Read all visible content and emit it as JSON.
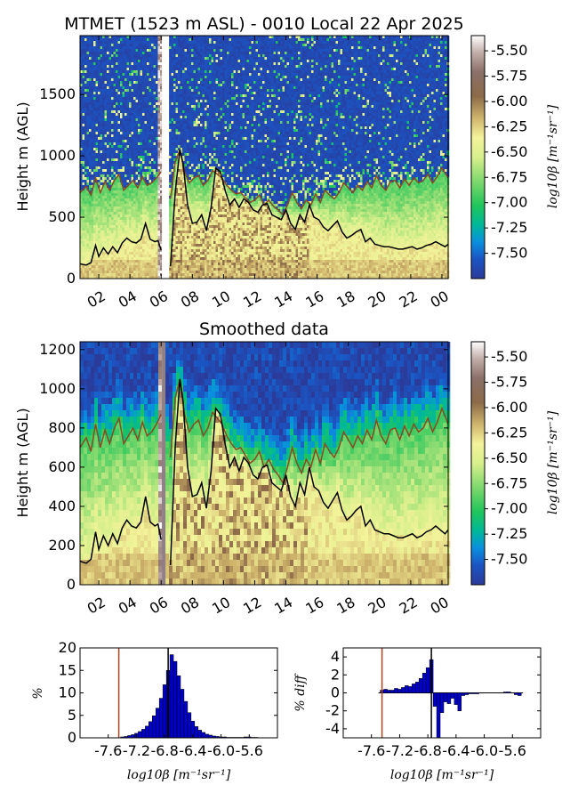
{
  "chart_data": [
    {
      "type": "heatmap",
      "title": "MTMET (1523 m ASL) - 0010 Local 22 Apr 2025",
      "ylabel": "Height m (AGL)",
      "xlabel": "",
      "x_ticks": [
        "02",
        "04",
        "06",
        "08",
        "10",
        "12",
        "14",
        "16",
        "18",
        "20",
        "22",
        "00"
      ],
      "x_range_hours": [
        0.8,
        24.4
      ],
      "ylim": [
        0,
        1980
      ],
      "y_ticks": [
        "0",
        "500",
        "1000",
        "1500"
      ],
      "colorbar": {
        "label": "log10β [m⁻¹sr⁻¹]",
        "range": [
          -7.75,
          -5.35
        ],
        "ticks": [
          "-5.50",
          "-5.75",
          "-6.00",
          "-6.25",
          "-6.50",
          "-6.75",
          "-7.00",
          "-7.25",
          "-7.50"
        ]
      },
      "series": [
        {
          "x": [
            0.8,
            1.2,
            1.5,
            1.8,
            2.0,
            2.3,
            2.6,
            2.9,
            3.2,
            3.5,
            3.8,
            4.1,
            4.4,
            4.7,
            5.0,
            5.3,
            5.6,
            5.8,
            6.0,
            6.6,
            6.9,
            7.2,
            7.4,
            7.7,
            8.0,
            8.3,
            8.6,
            8.9,
            9.2,
            9.5,
            9.8,
            10.1,
            10.4,
            10.7,
            11.0,
            11.3,
            11.6,
            11.9,
            12.2,
            12.5,
            12.8,
            13.1,
            13.4,
            13.7,
            14.0,
            14.3,
            14.6,
            14.9,
            15.2,
            15.5,
            15.8,
            16.1,
            16.4,
            16.7,
            17.0,
            17.3,
            17.6,
            17.9,
            18.2,
            18.5,
            18.8,
            19.1,
            19.4,
            19.7,
            20.0,
            20.3,
            20.6,
            20.9,
            21.2,
            21.5,
            21.8,
            22.1,
            22.4,
            22.7,
            23.0,
            23.3,
            23.6,
            23.9,
            24.2,
            24.4
          ],
          "y": [
            120,
            110,
            130,
            270,
            180,
            250,
            200,
            260,
            210,
            290,
            330,
            300,
            290,
            320,
            450,
            320,
            300,
            310,
            230,
            100,
            700,
            1050,
            940,
            600,
            450,
            460,
            520,
            390,
            580,
            900,
            870,
            720,
            600,
            650,
            580,
            650,
            620,
            560,
            540,
            600,
            610,
            520,
            500,
            480,
            560,
            450,
            400,
            520,
            460,
            600,
            500,
            480,
            420,
            390,
            430,
            470,
            380,
            330,
            350,
            380,
            400,
            300,
            330,
            280,
            270,
            260,
            260,
            250,
            240,
            240,
            250,
            260,
            240,
            250,
            270,
            280,
            300,
            280,
            260,
            280
          ]
        },
        {
          "x": [
            0.8,
            1.2,
            1.5,
            1.8,
            2.1,
            2.4,
            2.7,
            3.0,
            3.3,
            3.6,
            3.9,
            4.2,
            4.5,
            4.8,
            5.1,
            5.4,
            5.7,
            6.0,
            6.6,
            6.9,
            7.2,
            7.5,
            7.8,
            8.1,
            8.4,
            8.7,
            9.0,
            9.3,
            9.6,
            9.9,
            10.2,
            10.5,
            10.8,
            11.1,
            11.4,
            11.7,
            12.0,
            12.3,
            12.6,
            12.9,
            13.2,
            13.5,
            13.8,
            14.1,
            14.4,
            14.7,
            15.0,
            15.3,
            15.6,
            15.9,
            16.2,
            16.5,
            16.8,
            17.1,
            17.4,
            17.7,
            18.0,
            18.3,
            18.6,
            18.9,
            19.2,
            19.5,
            19.8,
            20.1,
            20.4,
            20.7,
            21.0,
            21.3,
            21.6,
            21.9,
            22.2,
            22.5,
            22.8,
            23.1,
            23.4,
            23.7,
            24.0,
            24.4
          ],
          "y": [
            700,
            750,
            680,
            820,
            700,
            790,
            720,
            800,
            850,
            720,
            760,
            800,
            740,
            830,
            760,
            780,
            820,
            870,
            650,
            950,
            1050,
            870,
            780,
            820,
            840,
            760,
            800,
            880,
            850,
            820,
            760,
            720,
            690,
            700,
            660,
            620,
            640,
            680,
            600,
            640,
            590,
            560,
            520,
            600,
            700,
            620,
            570,
            640,
            600,
            690,
            620,
            720,
            680,
            650,
            700,
            780,
            740,
            700,
            760,
            720,
            790,
            740,
            840,
            760,
            720,
            790,
            800,
            740,
            810,
            760,
            820,
            780,
            800,
            850,
            780,
            830,
            900,
            820
          ]
        }
      ]
    },
    {
      "type": "heatmap",
      "title": "Smoothed data",
      "ylabel": "Height m (AGL)",
      "xlabel": "",
      "x_ticks": [
        "02",
        "04",
        "06",
        "08",
        "10",
        "12",
        "14",
        "16",
        "18",
        "20",
        "22",
        "00"
      ],
      "x_range_hours": [
        0.8,
        24.4
      ],
      "ylim": [
        0,
        1240
      ],
      "y_ticks": [
        "0",
        "200",
        "400",
        "600",
        "800",
        "1000",
        "1200"
      ],
      "colorbar": {
        "label": "log10β [m⁻¹sr⁻¹]",
        "range": [
          -7.75,
          -5.35
        ],
        "ticks": [
          "-5.50",
          "-5.75",
          "-6.00",
          "-6.25",
          "-6.50",
          "-6.75",
          "-7.00",
          "-7.25",
          "-7.50"
        ]
      },
      "series": [
        {
          "x": [
            0.8,
            1.2,
            1.5,
            1.8,
            2.0,
            2.3,
            2.6,
            2.9,
            3.2,
            3.5,
            3.8,
            4.1,
            4.4,
            4.7,
            5.0,
            5.3,
            5.6,
            5.8,
            6.0,
            6.6,
            6.9,
            7.2,
            7.4,
            7.7,
            8.0,
            8.3,
            8.6,
            8.9,
            9.2,
            9.5,
            9.8,
            10.1,
            10.4,
            10.7,
            11.0,
            11.3,
            11.6,
            11.9,
            12.2,
            12.5,
            12.8,
            13.1,
            13.4,
            13.7,
            14.0,
            14.3,
            14.6,
            14.9,
            15.2,
            15.5,
            15.8,
            16.1,
            16.4,
            16.7,
            17.0,
            17.3,
            17.6,
            17.9,
            18.2,
            18.5,
            18.8,
            19.1,
            19.4,
            19.7,
            20.0,
            20.3,
            20.6,
            20.9,
            21.2,
            21.5,
            21.8,
            22.1,
            22.4,
            22.7,
            23.0,
            23.3,
            23.6,
            23.9,
            24.2,
            24.4
          ],
          "y": [
            120,
            110,
            130,
            270,
            180,
            250,
            200,
            260,
            210,
            290,
            330,
            300,
            290,
            320,
            450,
            320,
            300,
            310,
            230,
            100,
            700,
            1050,
            940,
            600,
            450,
            460,
            520,
            390,
            580,
            900,
            870,
            720,
            600,
            650,
            580,
            650,
            620,
            560,
            540,
            600,
            610,
            520,
            500,
            480,
            560,
            450,
            400,
            520,
            460,
            600,
            500,
            480,
            420,
            390,
            430,
            470,
            380,
            330,
            350,
            380,
            400,
            300,
            330,
            280,
            270,
            260,
            260,
            250,
            240,
            240,
            250,
            260,
            240,
            250,
            270,
            280,
            300,
            280,
            260,
            280
          ]
        },
        {
          "x": [
            0.8,
            1.2,
            1.5,
            1.8,
            2.1,
            2.4,
            2.7,
            3.0,
            3.3,
            3.6,
            3.9,
            4.2,
            4.5,
            4.8,
            5.1,
            5.4,
            5.7,
            6.0,
            6.6,
            6.9,
            7.2,
            7.5,
            7.8,
            8.1,
            8.4,
            8.7,
            9.0,
            9.3,
            9.6,
            9.9,
            10.2,
            10.5,
            10.8,
            11.1,
            11.4,
            11.7,
            12.0,
            12.3,
            12.6,
            12.9,
            13.2,
            13.5,
            13.8,
            14.1,
            14.4,
            14.7,
            15.0,
            15.3,
            15.6,
            15.9,
            16.2,
            16.5,
            16.8,
            17.1,
            17.4,
            17.7,
            18.0,
            18.3,
            18.6,
            18.9,
            19.2,
            19.5,
            19.8,
            20.1,
            20.4,
            20.7,
            21.0,
            21.3,
            21.6,
            21.9,
            22.2,
            22.5,
            22.8,
            23.1,
            23.4,
            23.7,
            24.0,
            24.4
          ],
          "y": [
            700,
            750,
            680,
            820,
            700,
            790,
            720,
            800,
            850,
            720,
            760,
            800,
            740,
            830,
            760,
            780,
            820,
            870,
            650,
            950,
            1050,
            870,
            780,
            820,
            840,
            760,
            800,
            880,
            850,
            820,
            760,
            720,
            690,
            700,
            660,
            620,
            640,
            680,
            600,
            640,
            590,
            560,
            520,
            600,
            700,
            620,
            570,
            640,
            600,
            690,
            620,
            720,
            680,
            650,
            700,
            780,
            740,
            700,
            760,
            720,
            790,
            740,
            840,
            760,
            720,
            790,
            800,
            740,
            810,
            760,
            820,
            780,
            800,
            850,
            780,
            830,
            900,
            820
          ]
        }
      ]
    },
    {
      "type": "bar",
      "title": "",
      "xlabel": "log10β [m⁻¹sr⁻¹]",
      "ylabel": "%",
      "xlim": [
        -8.0,
        -5.2
      ],
      "ylim": [
        0,
        20
      ],
      "x_ticks": [
        "-7.6",
        "-7.2",
        "-6.8",
        "-6.4",
        "-6.0",
        "-5.6"
      ],
      "y_ticks": [
        "0",
        "5",
        "10",
        "15",
        "20"
      ],
      "bin_width": 0.05,
      "x": [
        -7.4,
        -7.35,
        -7.3,
        -7.25,
        -7.2,
        -7.15,
        -7.1,
        -7.05,
        -7.0,
        -6.95,
        -6.9,
        -6.85,
        -6.8,
        -6.75,
        -6.7,
        -6.65,
        -6.6,
        -6.55,
        -6.5,
        -6.45,
        -6.4,
        -6.35,
        -6.3,
        -6.25,
        -6.2,
        -6.15,
        -6.1,
        -6.05,
        -6.0,
        -5.95,
        -5.9,
        -5.85,
        -5.8,
        -5.75,
        -5.7,
        -5.65,
        -5.6,
        -5.55,
        -5.5
      ],
      "values": [
        0.2,
        0.3,
        0.5,
        0.7,
        1.0,
        1.4,
        1.9,
        2.6,
        3.6,
        4.9,
        6.6,
        8.8,
        11.8,
        15.0,
        18.5,
        17.0,
        13.8,
        10.8,
        8.1,
        5.6,
        3.7,
        2.5,
        1.7,
        1.2,
        0.8,
        0.6,
        0.4,
        0.3,
        0.2,
        0.2,
        0.1,
        0.1,
        0.1,
        0.1,
        0.1,
        0.2,
        0.2,
        0.1,
        0.1
      ],
      "vlines": [
        {
          "x": -7.45,
          "color": "#b5421a"
        },
        {
          "x": -6.75,
          "color": "#000000"
        }
      ]
    },
    {
      "type": "bar",
      "title": "",
      "xlabel": "log10β [m⁻¹sr⁻¹]",
      "ylabel": "% diff",
      "xlim": [
        -8.0,
        -5.2
      ],
      "ylim": [
        -5,
        5
      ],
      "x_ticks": [
        "-7.6",
        "-7.2",
        "-6.8",
        "-6.4",
        "-6.0",
        "-5.6"
      ],
      "y_ticks": [
        "-4",
        "-2",
        "0",
        "2",
        "4"
      ],
      "bin_width": 0.05,
      "x": [
        -7.45,
        -7.4,
        -7.35,
        -7.3,
        -7.25,
        -7.2,
        -7.15,
        -7.1,
        -7.05,
        -7.0,
        -6.95,
        -6.9,
        -6.85,
        -6.8,
        -6.75,
        -6.7,
        -6.65,
        -6.6,
        -6.55,
        -6.5,
        -6.45,
        -6.4,
        -6.35,
        -6.3,
        -6.25,
        -6.2,
        -6.15,
        -6.1,
        -6.05,
        -6.0,
        -5.95,
        -5.9,
        -5.85,
        -5.8,
        -5.75,
        -5.7,
        -5.65,
        -5.6,
        -5.55,
        -5.5
      ],
      "values": [
        0.3,
        0.4,
        0.3,
        0.3,
        0.5,
        0.4,
        0.6,
        0.8,
        0.7,
        1.0,
        1.2,
        1.6,
        2.2,
        2.8,
        3.7,
        -1.5,
        -5.0,
        -2.2,
        -1.0,
        -1.2,
        -0.6,
        -1.3,
        -2.0,
        -0.3,
        -0.2,
        -0.1,
        -0.1,
        -0.1,
        0,
        0,
        0,
        0,
        0,
        0,
        0,
        0.1,
        0.1,
        0,
        -0.2,
        -0.3
      ],
      "vlines": [
        {
          "x": -7.45,
          "color": "#b5421a"
        },
        {
          "x": -6.75,
          "color": "#000000"
        }
      ]
    }
  ]
}
